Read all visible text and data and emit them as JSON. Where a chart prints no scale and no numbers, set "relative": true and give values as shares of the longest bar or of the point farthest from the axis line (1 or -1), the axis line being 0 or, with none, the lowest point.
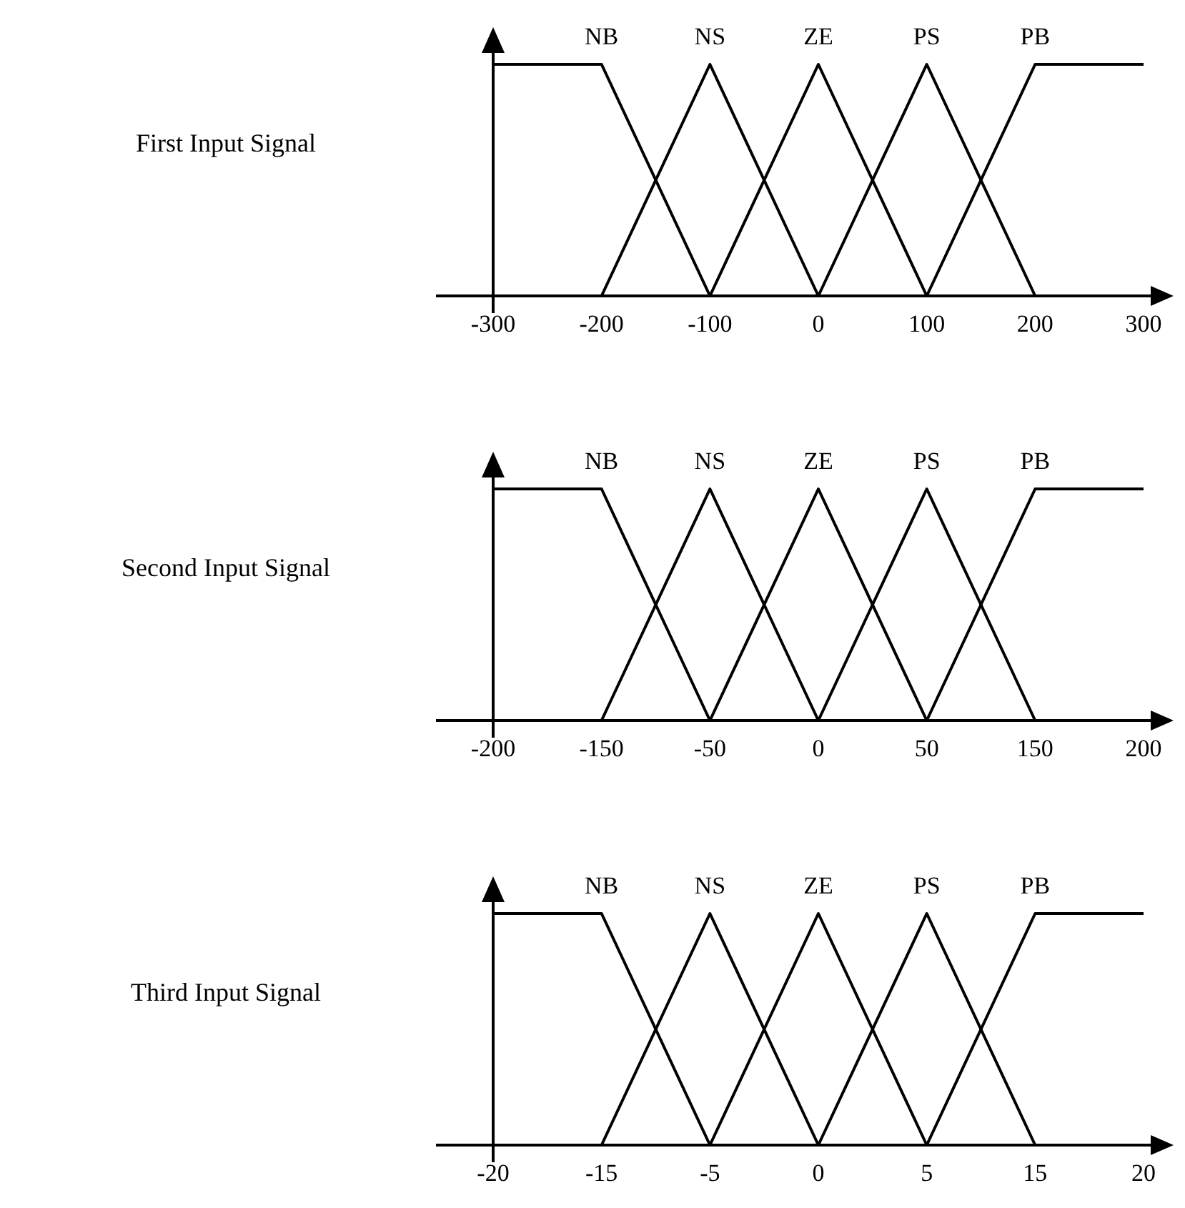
{
  "chart_data": [
    {
      "type": "line",
      "relative": true,
      "ylabel": "First Input Signal",
      "categories": [
        "-300",
        "-200",
        "-100",
        "0",
        "100",
        "200",
        "300"
      ],
      "series": [
        {
          "name": "NB",
          "color": "#000000",
          "values": [
            1,
            1,
            0,
            null,
            null,
            null,
            null
          ]
        },
        {
          "name": "NS",
          "color": "#000000",
          "values": [
            null,
            0,
            1,
            0,
            null,
            null,
            null
          ]
        },
        {
          "name": "ZE",
          "color": "#000000",
          "values": [
            null,
            null,
            0,
            1,
            0,
            null,
            null
          ]
        },
        {
          "name": "PS",
          "color": "#000000",
          "values": [
            null,
            null,
            null,
            0,
            1,
            0,
            null
          ]
        },
        {
          "name": "PB",
          "color": "#000000",
          "values": [
            null,
            null,
            null,
            null,
            0,
            1,
            1
          ]
        }
      ]
    },
    {
      "type": "line",
      "relative": true,
      "ylabel": "Second Input Signal",
      "categories": [
        "-200",
        "-150",
        "-50",
        "0",
        "50",
        "150",
        "200"
      ],
      "series": [
        {
          "name": "NB",
          "color": "#000000",
          "values": [
            1,
            1,
            0,
            null,
            null,
            null,
            null
          ]
        },
        {
          "name": "NS",
          "color": "#000000",
          "values": [
            null,
            0,
            1,
            0,
            null,
            null,
            null
          ]
        },
        {
          "name": "ZE",
          "color": "#000000",
          "values": [
            null,
            null,
            0,
            1,
            0,
            null,
            null
          ]
        },
        {
          "name": "PS",
          "color": "#000000",
          "values": [
            null,
            null,
            null,
            0,
            1,
            0,
            null
          ]
        },
        {
          "name": "PB",
          "color": "#000000",
          "values": [
            null,
            null,
            null,
            null,
            0,
            1,
            1
          ]
        }
      ]
    },
    {
      "type": "line",
      "relative": true,
      "ylabel": "Third Input Signal",
      "categories": [
        "-20",
        "-15",
        "-5",
        "0",
        "5",
        "15",
        "20"
      ],
      "series": [
        {
          "name": "NB",
          "color": "#000000",
          "values": [
            1,
            1,
            0,
            null,
            null,
            null,
            null
          ]
        },
        {
          "name": "NS",
          "color": "#000000",
          "values": [
            null,
            0,
            1,
            0,
            null,
            null,
            null
          ]
        },
        {
          "name": "ZE",
          "color": "#000000",
          "values": [
            null,
            null,
            0,
            1,
            0,
            null,
            null
          ]
        },
        {
          "name": "PS",
          "color": "#000000",
          "values": [
            null,
            null,
            null,
            0,
            1,
            0,
            null
          ]
        },
        {
          "name": "PB",
          "color": "#000000",
          "values": [
            null,
            null,
            null,
            null,
            0,
            1,
            1
          ]
        }
      ]
    }
  ]
}
